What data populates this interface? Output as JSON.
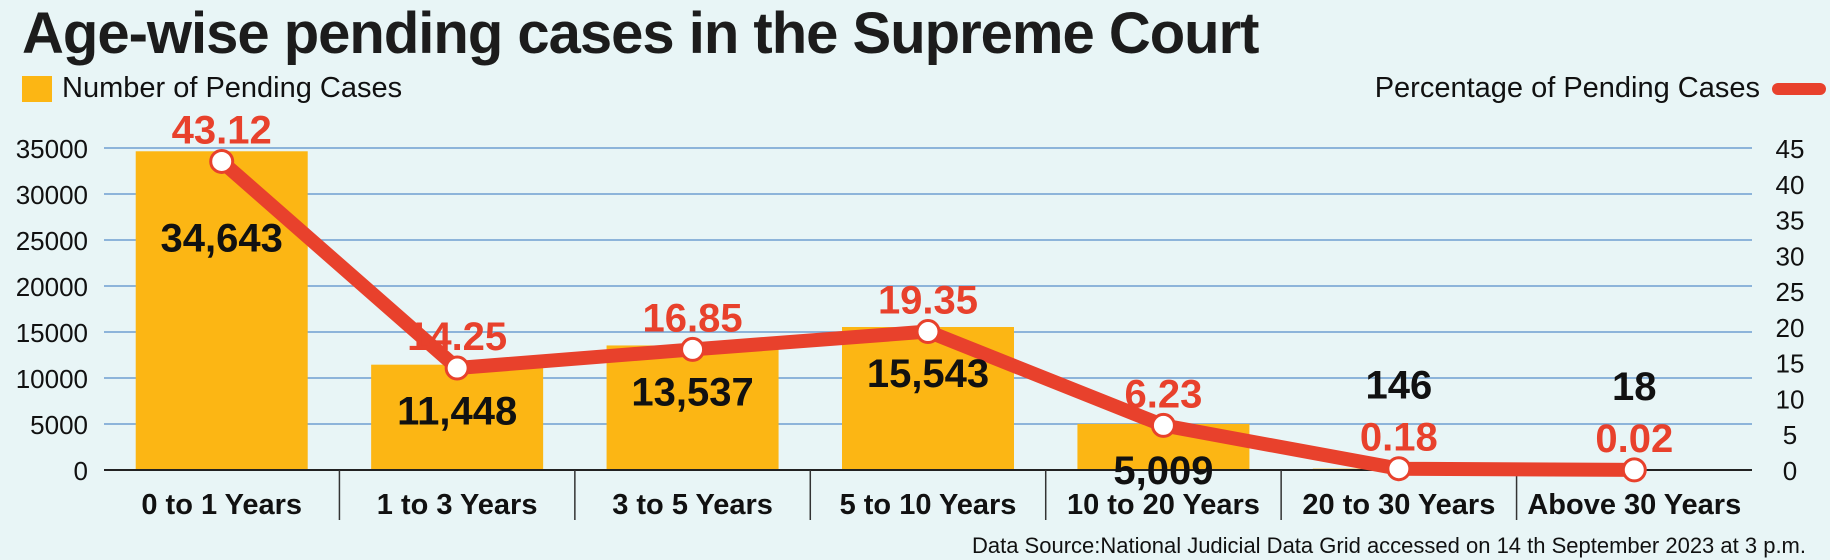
{
  "title": "Age-wise pending cases in the Supreme Court",
  "legend": {
    "bars_label": "Number of Pending Cases",
    "line_label": "Percentage of Pending Cases"
  },
  "source": "Data Source:National Judicial Data Grid accessed on 14 th September 2023 at 3 p.m.",
  "colors": {
    "bar": "#fcb614",
    "line": "#e8412c",
    "grid": "#6f9fd0",
    "background": "#e8f5f6"
  },
  "chart_data": {
    "type": "bar",
    "title": "Age-wise pending cases in the Supreme Court",
    "categories": [
      "0 to 1 Years",
      "1 to 3 Years",
      "3 to 5 Years",
      "5 to 10 Years",
      "10 to 20 Years",
      "20 to 30 Years",
      "Above 30 Years"
    ],
    "series": [
      {
        "name": "Number of Pending Cases",
        "type": "bar",
        "axis": "left",
        "values": [
          34643,
          11448,
          13537,
          15543,
          5009,
          146,
          18
        ],
        "labels": [
          "34,643",
          "11,448",
          "13,537",
          "15,543",
          "5,009",
          "146",
          "18"
        ]
      },
      {
        "name": "Percentage of Pending Cases",
        "type": "line",
        "axis": "right",
        "values": [
          43.12,
          14.25,
          16.85,
          19.35,
          6.23,
          0.18,
          0.02
        ],
        "labels": [
          "43.12",
          "14.25",
          "16.85",
          "19.35",
          "6.23",
          "0.18",
          "0.02"
        ]
      }
    ],
    "y_left": {
      "ylim": [
        0,
        35000
      ],
      "ticks": [
        "0",
        "5000",
        "10000",
        "15000",
        "20000",
        "25000",
        "30000",
        "35000"
      ]
    },
    "y_right": {
      "ylim": [
        0,
        45
      ],
      "ticks": [
        "0",
        "5",
        "10",
        "15",
        "20",
        "25",
        "30",
        "35",
        "40",
        "45"
      ]
    },
    "grid": true,
    "legend_position": "top"
  }
}
